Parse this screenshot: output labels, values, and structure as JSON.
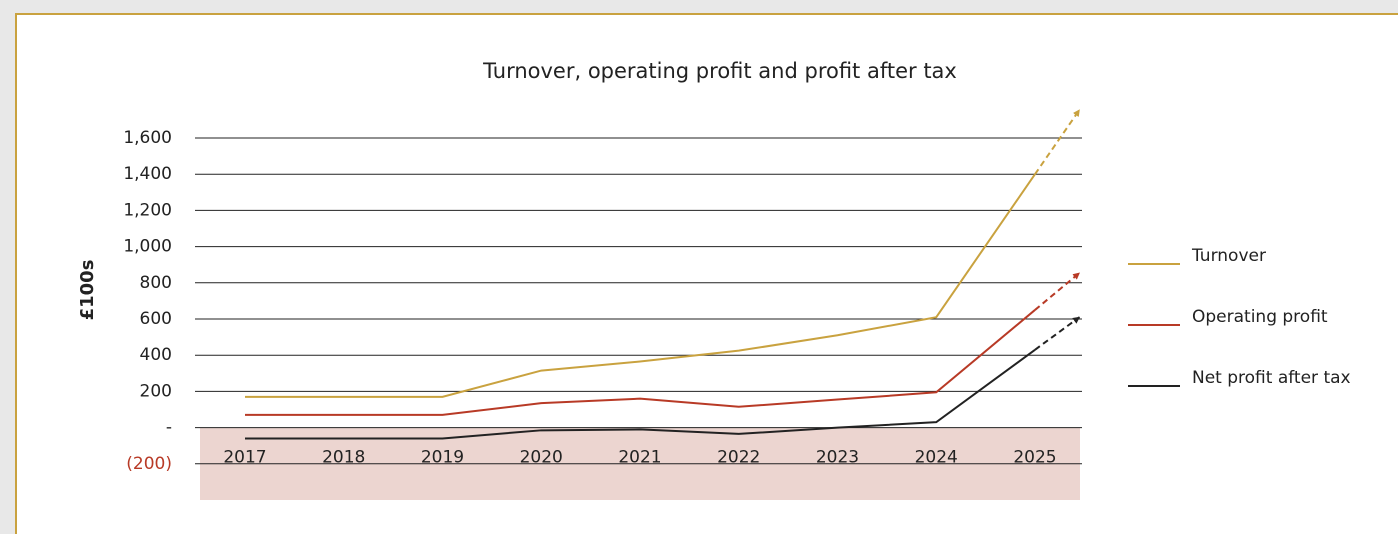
{
  "chart_data": {
    "type": "line",
    "title": "Turnover, operating profit and profit after tax",
    "y_label": "£100s",
    "categories": [
      "2017",
      "2018",
      "2019",
      "2020",
      "2021",
      "2022",
      "2023",
      "2024",
      "2025"
    ],
    "series": [
      {
        "name": "Turnover",
        "color": "#c9a23f",
        "values": [
          170,
          170,
          170,
          315,
          365,
          425,
          510,
          610,
          1400
        ]
      },
      {
        "name": "Operating profit",
        "color": "#b83a26",
        "values": [
          70,
          70,
          70,
          135,
          160,
          115,
          155,
          195,
          650
        ]
      },
      {
        "name": "Net profit after tax",
        "color": "#222222",
        "values": [
          -60,
          -60,
          -60,
          -15,
          -10,
          -35,
          0,
          30,
          430
        ]
      }
    ],
    "ylim": [
      -400,
      1600
    ],
    "yticks": [
      {
        "value": -200,
        "label": "(200)"
      },
      {
        "value": 0,
        "label": "-"
      },
      200,
      400,
      600,
      800,
      {
        "value": 1000,
        "label": "1,000"
      },
      {
        "value": 1200,
        "label": "1,200"
      },
      {
        "value": 1400,
        "label": "1,400"
      },
      {
        "value": 1600,
        "label": "1,600"
      }
    ],
    "grid": true,
    "legend": "right"
  }
}
